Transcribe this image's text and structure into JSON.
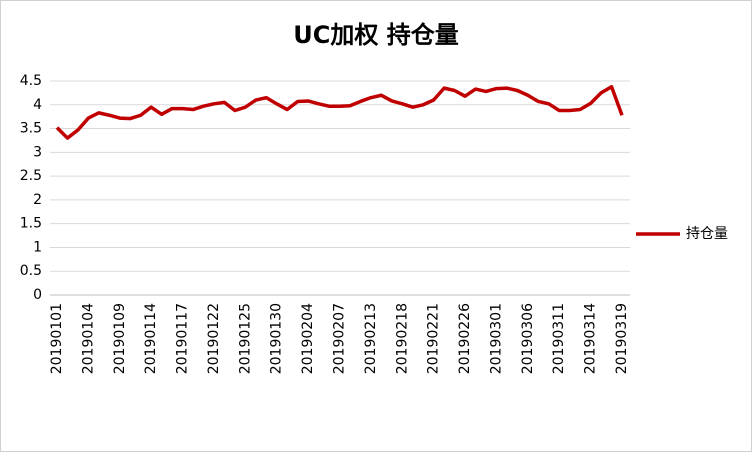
{
  "chart_data": {
    "type": "line",
    "title": "UC加权 持仓量",
    "categories": [
      "20190101",
      null,
      null,
      "20190104",
      null,
      null,
      "20190109",
      null,
      null,
      "20190114",
      null,
      null,
      "20190117",
      null,
      null,
      "20190122",
      null,
      null,
      "20190125",
      null,
      null,
      "20190130",
      null,
      null,
      "20190204",
      null,
      null,
      "20190207",
      null,
      null,
      "20190213",
      null,
      null,
      "20190218",
      null,
      null,
      "20190221",
      null,
      null,
      "20190226",
      null,
      null,
      "20190301",
      null,
      null,
      "20190306",
      null,
      null,
      "20190311",
      null,
      null,
      "20190314",
      null,
      null,
      "20190319"
    ],
    "series": [
      {
        "name": "持仓量",
        "color": "#c00000",
        "values": [
          3.52,
          3.3,
          3.47,
          3.72,
          3.83,
          3.78,
          3.72,
          3.71,
          3.78,
          3.95,
          3.8,
          3.92,
          3.92,
          3.9,
          3.97,
          4.02,
          4.05,
          3.88,
          3.95,
          4.1,
          4.15,
          4.02,
          3.9,
          4.07,
          4.08,
          4.02,
          3.97,
          3.97,
          3.98,
          4.07,
          4.15,
          4.2,
          4.08,
          4.02,
          3.95,
          4.0,
          4.1,
          4.35,
          4.3,
          4.18,
          4.33,
          4.28,
          4.34,
          4.35,
          4.3,
          4.2,
          4.07,
          4.02,
          3.88,
          3.88,
          3.9,
          4.03,
          4.25,
          4.38,
          3.78
        ]
      }
    ],
    "ylim": [
      0,
      4.5
    ],
    "yticks": [
      0,
      0.5,
      1,
      1.5,
      2,
      2.5,
      3,
      3.5,
      4,
      4.5
    ],
    "grid": true,
    "legend": "right"
  }
}
